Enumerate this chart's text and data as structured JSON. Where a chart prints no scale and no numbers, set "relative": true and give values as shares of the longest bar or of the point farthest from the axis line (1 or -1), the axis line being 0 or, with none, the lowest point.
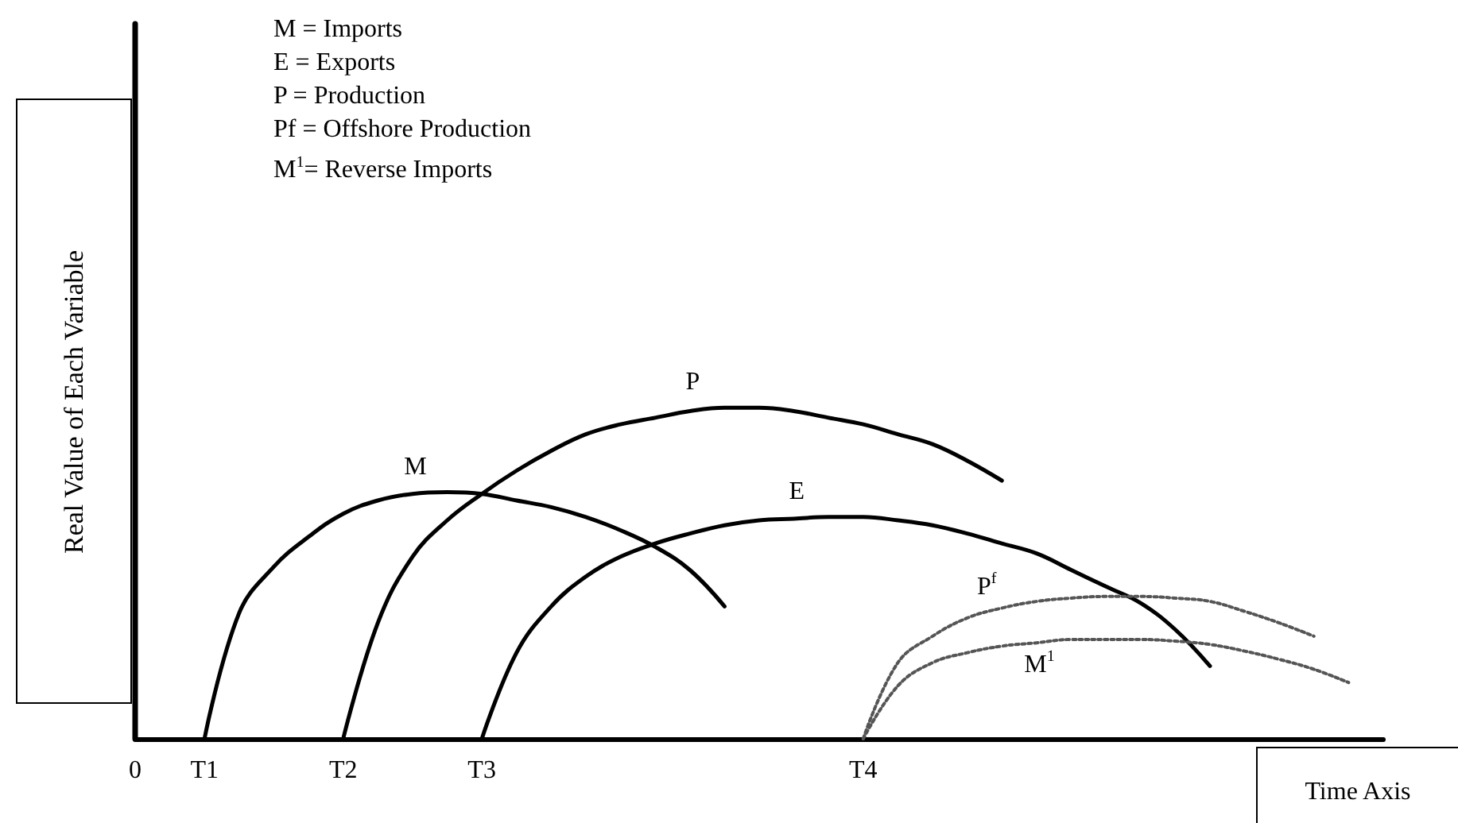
{
  "chart_data": {
    "type": "line",
    "relative": true,
    "xlabel": "Time Axis",
    "ylabel": "Real Value of Each Variable",
    "annotations": [
      "M = Imports",
      "E = Exports",
      "P = Production",
      "Pf = Offshore Production",
      "M$^{1}$= Reverse Imports"
    ],
    "categories": [
      "0",
      null,
      "T1",
      null,
      null,
      null,
      "T2",
      null,
      null,
      null,
      "T3",
      null,
      null,
      null,
      null,
      null,
      null,
      null,
      null,
      null,
      null,
      "T4",
      null,
      null,
      null,
      null,
      null,
      null,
      null,
      null,
      null,
      null,
      null,
      null,
      null,
      null,
      null
    ],
    "grid": false,
    "legend": false,
    "marker": "none",
    "series": [
      {
        "name": "M",
        "color": "#000000",
        "line_style": "solid",
        "values": [
          null,
          null,
          0,
          0.38,
          0.52,
          0.61,
          0.68,
          0.72,
          0.74,
          0.745,
          0.74,
          0.72,
          0.7,
          0.67,
          0.63,
          0.58,
          0.51,
          0.4,
          null,
          null,
          null,
          null,
          null,
          null,
          null,
          null,
          null,
          null,
          null,
          null,
          null,
          null,
          null,
          null,
          null,
          null,
          null
        ]
      },
      {
        "name": "P",
        "color": "#000000",
        "line_style": "solid",
        "values": [
          null,
          null,
          null,
          null,
          null,
          null,
          0,
          0.35,
          0.55,
          0.66,
          0.74,
          0.81,
          0.87,
          0.92,
          0.95,
          0.97,
          0.99,
          1,
          1,
          0.99,
          0.97,
          0.95,
          0.92,
          0.89,
          0.84,
          0.78,
          null,
          null,
          null,
          null,
          null,
          null,
          null,
          null,
          null,
          null,
          null
        ]
      },
      {
        "name": "E",
        "color": "#000000",
        "line_style": "solid",
        "values": [
          null,
          null,
          null,
          null,
          null,
          null,
          null,
          null,
          null,
          null,
          0,
          0.26,
          0.4,
          0.49,
          0.55,
          0.59,
          0.62,
          0.645,
          0.66,
          0.665,
          0.67,
          0.67,
          0.66,
          0.645,
          0.62,
          0.59,
          0.56,
          0.51,
          0.46,
          0.41,
          0.33,
          0.22,
          null,
          null,
          null,
          null,
          null
        ]
      },
      {
        "name": "P$^{f}$",
        "color": "#555555",
        "line_style": "dotted",
        "values": [
          null,
          null,
          null,
          null,
          null,
          null,
          null,
          null,
          null,
          null,
          null,
          null,
          null,
          null,
          null,
          null,
          null,
          null,
          null,
          null,
          null,
          0,
          0.23,
          0.31,
          0.365,
          0.395,
          0.415,
          0.425,
          0.43,
          0.43,
          0.425,
          0.415,
          0.385,
          0.35,
          0.31,
          null,
          null
        ]
      },
      {
        "name": "M$^{1}$",
        "color": "#555555",
        "line_style": "dotted",
        "values": [
          null,
          null,
          null,
          null,
          null,
          null,
          null,
          null,
          null,
          null,
          null,
          null,
          null,
          null,
          null,
          null,
          null,
          null,
          null,
          null,
          null,
          0,
          0.16,
          0.23,
          0.26,
          0.28,
          0.29,
          0.3,
          0.3,
          0.3,
          0.295,
          0.285,
          0.265,
          0.24,
          0.21,
          0.17,
          null
        ]
      }
    ]
  }
}
